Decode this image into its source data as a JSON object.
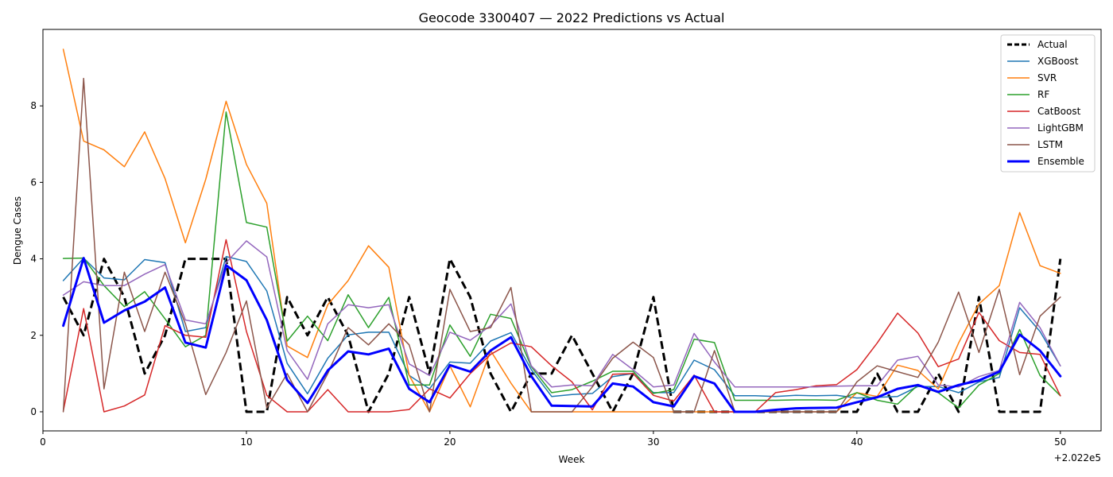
{
  "chart_data": {
    "type": "line",
    "title": "Geocode 3300407 — 2022 Predictions vs Actual",
    "xlabel": "Week",
    "ylabel": "Dengue Cases",
    "x_offset_label": "+2.022e5",
    "x_tick_labels": [
      "0",
      "10",
      "20",
      "30",
      "40",
      "50"
    ],
    "y_tick_labels": [
      "0",
      "2",
      "4",
      "6",
      "8"
    ],
    "xlim": [
      0,
      52
    ],
    "ylim": [
      -0.5,
      10
    ],
    "grid": false,
    "legend_position": "top-right",
    "x": [
      1,
      2,
      3,
      4,
      5,
      6,
      7,
      8,
      9,
      10,
      11,
      12,
      13,
      14,
      15,
      16,
      17,
      18,
      19,
      20,
      21,
      22,
      23,
      24,
      25,
      26,
      27,
      28,
      29,
      30,
      31,
      32,
      33,
      34,
      35,
      36,
      37,
      38,
      39,
      40,
      41,
      42,
      43,
      44,
      45,
      46,
      47,
      48,
      49,
      50
    ],
    "series": [
      {
        "name": "Actual",
        "color": "#000000",
        "dashed": true,
        "width": 3,
        "values": [
          3,
          2,
          4,
          3,
          1,
          2,
          4,
          4,
          4,
          0,
          0,
          3,
          2,
          3,
          2,
          0,
          1,
          3,
          1,
          4,
          3,
          1,
          0,
          1,
          1,
          2,
          1,
          0,
          1,
          3,
          0,
          0,
          0,
          0,
          0,
          0,
          0,
          0,
          0,
          0,
          1,
          0,
          0,
          1,
          0,
          3,
          0,
          0,
          0,
          4
        ]
      },
      {
        "name": "XGBoost",
        "color": "#1f77b4",
        "dashed": false,
        "width": 1.5,
        "values": [
          3.43,
          4.02,
          3.5,
          3.45,
          3.98,
          3.9,
          2.1,
          2.2,
          4.06,
          3.93,
          3.16,
          1.27,
          0.47,
          1.4,
          2.01,
          2.08,
          2.08,
          0.95,
          0.6,
          1.3,
          1.27,
          1.85,
          2.07,
          1.1,
          0.4,
          0.45,
          0.48,
          0.92,
          1.0,
          0.5,
          0.5,
          1.35,
          1.1,
          0.42,
          0.42,
          0.4,
          0.43,
          0.42,
          0.43,
          0.36,
          0.38,
          0.4,
          0.66,
          0.66,
          0.5,
          0.78,
          0.9,
          2.72,
          2.1,
          1.2
        ]
      },
      {
        "name": "SVR",
        "color": "#ff7f0e",
        "dashed": false,
        "width": 1.5,
        "values": [
          9.48,
          7.08,
          6.85,
          6.41,
          7.32,
          6.1,
          4.42,
          6.08,
          8.12,
          6.47,
          5.45,
          1.72,
          1.42,
          2.8,
          3.43,
          4.34,
          3.78,
          0.95,
          0.0,
          1.2,
          0.13,
          1.6,
          0.75,
          0.0,
          0.0,
          0.0,
          0.0,
          0.0,
          0.0,
          0.0,
          0.0,
          0.0,
          0.0,
          0.0,
          0.0,
          0.0,
          0.0,
          0.0,
          0.0,
          0.5,
          0.4,
          1.22,
          1.08,
          0.6,
          1.8,
          2.82,
          3.3,
          5.21,
          3.82,
          3.62
        ]
      },
      {
        "name": "RF",
        "color": "#2ca02c",
        "dashed": false,
        "width": 1.5,
        "values": [
          4.01,
          4.02,
          3.3,
          2.75,
          3.14,
          2.43,
          1.7,
          2.0,
          7.84,
          4.95,
          4.83,
          1.85,
          2.5,
          1.86,
          3.06,
          2.2,
          2.99,
          0.7,
          0.7,
          2.27,
          1.45,
          2.55,
          2.44,
          1.18,
          0.5,
          0.58,
          0.8,
          1.06,
          1.06,
          0.48,
          0.58,
          1.9,
          1.81,
          0.3,
          0.3,
          0.3,
          0.31,
          0.31,
          0.3,
          0.5,
          0.3,
          0.2,
          0.7,
          0.5,
          0.1,
          0.7,
          1.0,
          2.15,
          0.95,
          0.42
        ]
      },
      {
        "name": "CatBoost",
        "color": "#d62728",
        "dashed": false,
        "width": 1.5,
        "values": [
          0.02,
          2.7,
          0.0,
          0.15,
          0.44,
          2.25,
          2.0,
          1.95,
          4.5,
          2.1,
          0.43,
          0.0,
          0.0,
          0.58,
          0.0,
          0.0,
          0.0,
          0.06,
          0.6,
          0.36,
          1.0,
          1.5,
          1.8,
          1.7,
          1.2,
          0.78,
          0.05,
          0.98,
          1.0,
          0.43,
          0.28,
          0.96,
          0.0,
          0.0,
          0.0,
          0.5,
          0.58,
          0.68,
          0.71,
          1.1,
          1.8,
          2.58,
          2.06,
          1.18,
          1.38,
          2.6,
          1.86,
          1.55,
          1.5,
          0.42
        ]
      },
      {
        "name": "LightGBM",
        "color": "#9467bd",
        "dashed": false,
        "width": 1.5,
        "values": [
          3.05,
          3.4,
          3.3,
          3.3,
          3.6,
          3.85,
          2.4,
          2.3,
          3.9,
          4.47,
          4.05,
          1.6,
          0.85,
          2.3,
          2.8,
          2.72,
          2.8,
          1.25,
          0.95,
          2.08,
          1.87,
          2.25,
          2.82,
          1.2,
          0.65,
          0.7,
          0.68,
          1.5,
          1.1,
          0.65,
          0.7,
          2.05,
          1.3,
          0.65,
          0.65,
          0.65,
          0.65,
          0.65,
          0.67,
          0.68,
          0.68,
          1.35,
          1.45,
          0.7,
          0.65,
          0.92,
          1.08,
          2.86,
          2.2,
          1.2
        ]
      },
      {
        "name": "LSTM",
        "color": "#8c564b",
        "dashed": false,
        "width": 1.5,
        "values": [
          0.0,
          8.72,
          0.6,
          3.65,
          2.1,
          3.65,
          2.3,
          0.45,
          1.55,
          2.9,
          0.1,
          1.0,
          0.0,
          1.0,
          2.2,
          1.75,
          2.3,
          1.75,
          0.0,
          3.2,
          2.1,
          2.2,
          3.25,
          0.0,
          0.0,
          0.0,
          0.65,
          1.4,
          1.82,
          1.42,
          0.0,
          0.0,
          1.6,
          0.0,
          0.0,
          0.0,
          0.0,
          0.0,
          0.0,
          0.78,
          1.2,
          1.05,
          0.9,
          1.82,
          3.13,
          1.55,
          3.2,
          0.97,
          2.5,
          3.0
        ]
      },
      {
        "name": "Ensemble",
        "color": "#0000ff",
        "dashed": false,
        "width": 3,
        "values": [
          2.25,
          4.02,
          2.33,
          2.65,
          2.88,
          3.25,
          1.81,
          1.68,
          3.83,
          3.44,
          2.4,
          0.83,
          0.23,
          1.08,
          1.58,
          1.5,
          1.65,
          0.6,
          0.25,
          1.22,
          1.05,
          1.6,
          1.95,
          0.93,
          0.16,
          0.15,
          0.14,
          0.74,
          0.66,
          0.25,
          0.14,
          0.93,
          0.74,
          0.0,
          0.0,
          0.05,
          0.09,
          0.1,
          0.11,
          0.25,
          0.38,
          0.6,
          0.7,
          0.52,
          0.7,
          0.82,
          1.05,
          2.02,
          1.6,
          0.93
        ]
      }
    ]
  }
}
